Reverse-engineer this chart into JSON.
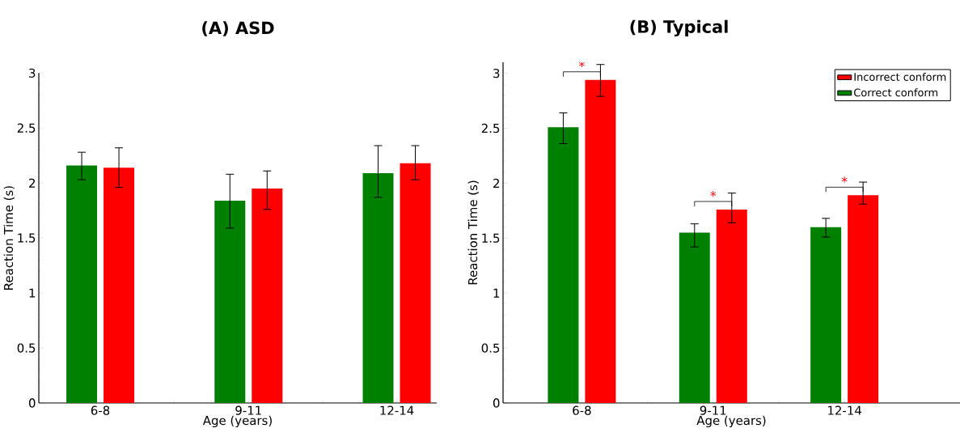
{
  "chart_data": [
    {
      "type": "bar",
      "title": "(A) ASD",
      "xlabel": "Age (years)",
      "ylabel": "Reaction Time (s)",
      "categories": [
        "6-8",
        "9-11",
        "12-14"
      ],
      "series": [
        {
          "color": "#008000",
          "values": [
            2.16,
            1.84,
            2.09
          ],
          "errors": [
            [
              2.03,
              2.28
            ],
            [
              1.59,
              2.08
            ],
            [
              1.87,
              2.34
            ]
          ]
        },
        {
          "color": "#ff0000",
          "values": [
            2.14,
            1.95,
            2.18
          ],
          "errors": [
            [
              1.96,
              2.32
            ],
            [
              1.76,
              2.11
            ],
            [
              2.03,
              2.34
            ]
          ]
        }
      ],
      "ylim": [
        0,
        3
      ],
      "yticks": [
        0,
        0.5,
        1,
        1.5,
        2,
        2.5,
        3
      ],
      "grid": false
    },
    {
      "type": "bar",
      "title": "(B) Typical",
      "xlabel": "Age (years)",
      "ylabel": "Reaction Time (s)",
      "categories": [
        "6-8",
        "9-11",
        "12-14"
      ],
      "series": [
        {
          "name": "Correct conform",
          "color": "#008000",
          "values": [
            2.51,
            1.55,
            1.6
          ],
          "errors": [
            [
              2.36,
              2.64
            ],
            [
              1.42,
              1.63
            ],
            [
              1.51,
              1.68
            ]
          ]
        },
        {
          "name": "Incorrect conform",
          "color": "#ff0000",
          "values": [
            2.94,
            1.76,
            1.89
          ],
          "errors": [
            [
              2.79,
              3.08
            ],
            [
              1.64,
              1.91
            ],
            [
              1.81,
              2.01
            ]
          ]
        }
      ],
      "ylim": [
        0,
        3.1
      ],
      "yticks": [
        0,
        0.5,
        1,
        1.5,
        2,
        2.5,
        3
      ],
      "grid": false,
      "legend": "top right",
      "annotations": [
        "*",
        "*",
        "*"
      ]
    }
  ]
}
